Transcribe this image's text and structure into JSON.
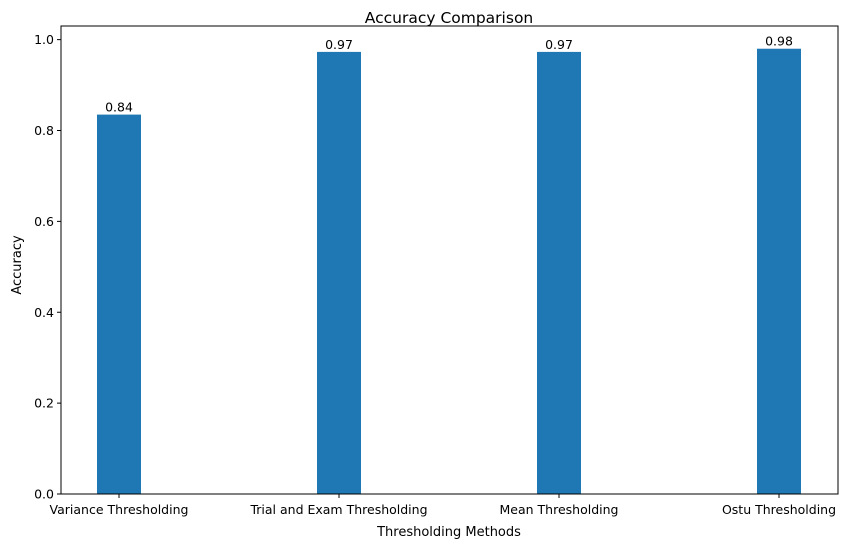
{
  "chart_data": {
    "type": "bar",
    "title": "Accuracy Comparison",
    "xlabel": "Thresholding Methods",
    "ylabel": "Accuracy",
    "categories": [
      "Variance Thresholding",
      "Trial and Exam Thresholding",
      "Mean Thresholding",
      "Ostu Thresholding"
    ],
    "values": [
      0.835,
      0.973,
      0.973,
      0.98
    ],
    "value_labels": [
      "0.84",
      "0.97",
      "0.97",
      "0.98"
    ],
    "ylim": [
      0,
      1.03
    ],
    "yticks": [
      0.0,
      0.2,
      0.4,
      0.6,
      0.8,
      1.0
    ],
    "ytick_labels": [
      "0.0",
      "0.2",
      "0.4",
      "0.6",
      "0.8",
      "1.0"
    ],
    "grid": false,
    "bar_color": "#1f77b4"
  }
}
